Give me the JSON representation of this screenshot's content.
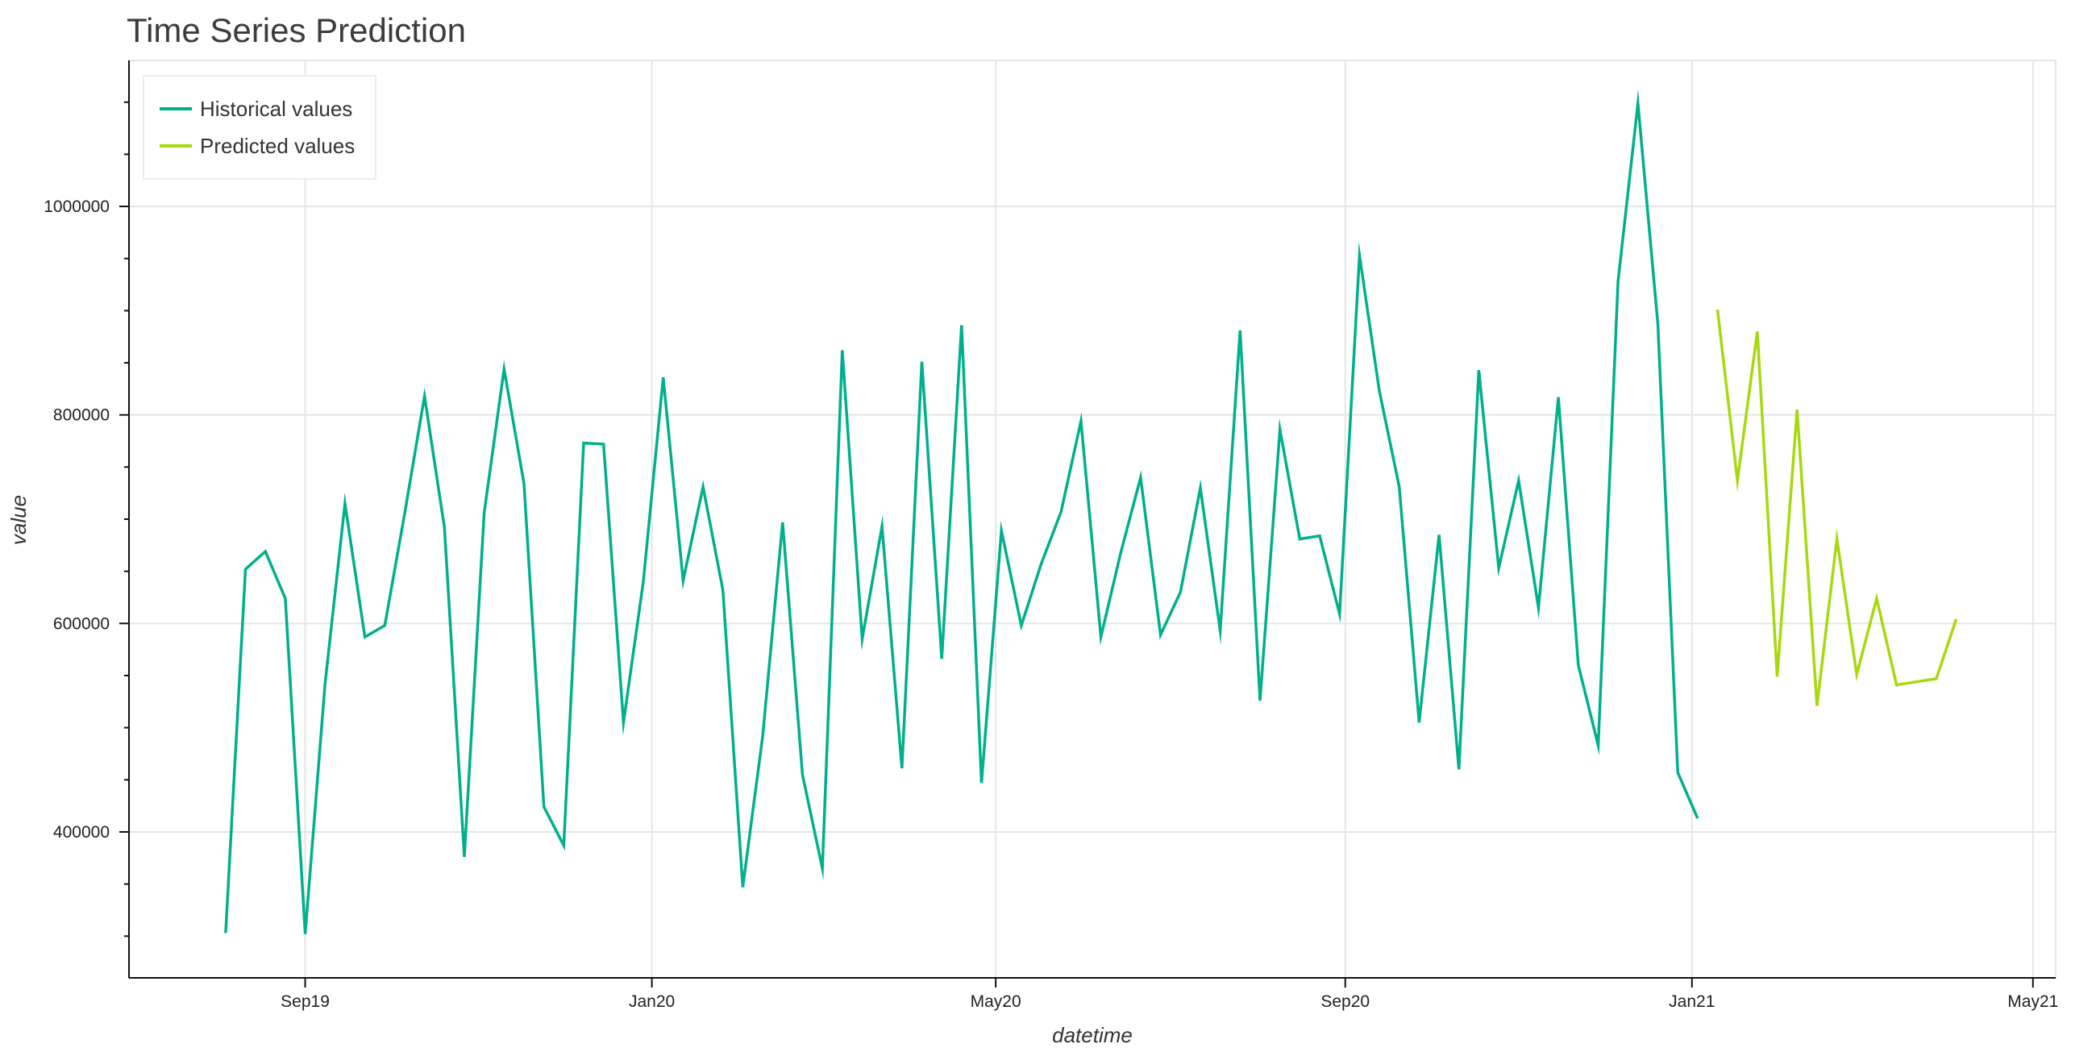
{
  "chart_data": {
    "type": "line",
    "title": "Time Series Prediction",
    "xlabel": "datetime",
    "ylabel": "value",
    "x_ticks": [
      {
        "date": "2019-09-01",
        "label": "Sep19"
      },
      {
        "date": "2020-01-01",
        "label": "Jan20"
      },
      {
        "date": "2020-05-01",
        "label": "May20"
      },
      {
        "date": "2020-09-01",
        "label": "Sep20"
      },
      {
        "date": "2021-01-01",
        "label": "Jan21"
      },
      {
        "date": "2021-05-01",
        "label": "May21"
      }
    ],
    "y_ticks": [
      {
        "value": 400000,
        "label": "400000"
      },
      {
        "value": 600000,
        "label": "600000"
      },
      {
        "value": 800000,
        "label": "800000"
      },
      {
        "value": 1000000,
        "label": "1000000"
      }
    ],
    "xlim": [
      "2019-07-01",
      "2021-05-09"
    ],
    "ylim": [
      260000,
      1140000
    ],
    "grid": true,
    "legend_position": "top-left",
    "series": [
      {
        "name": "Historical values",
        "color": "#00b08b",
        "x": [
          "2019-08-04",
          "2019-08-11",
          "2019-08-18",
          "2019-08-25",
          "2019-09-01",
          "2019-09-08",
          "2019-09-15",
          "2019-09-22",
          "2019-09-29",
          "2019-10-06",
          "2019-10-13",
          "2019-10-20",
          "2019-10-27",
          "2019-11-03",
          "2019-11-10",
          "2019-11-17",
          "2019-11-24",
          "2019-12-01",
          "2019-12-08",
          "2019-12-15",
          "2019-12-22",
          "2019-12-29",
          "2020-01-05",
          "2020-01-12",
          "2020-01-19",
          "2020-01-26",
          "2020-02-02",
          "2020-02-09",
          "2020-02-16",
          "2020-02-23",
          "2020-03-01",
          "2020-03-08",
          "2020-03-15",
          "2020-03-22",
          "2020-03-29",
          "2020-04-05",
          "2020-04-12",
          "2020-04-19",
          "2020-04-26",
          "2020-05-03",
          "2020-05-10",
          "2020-05-17",
          "2020-05-24",
          "2020-05-31",
          "2020-06-07",
          "2020-06-14",
          "2020-06-21",
          "2020-06-28",
          "2020-07-05",
          "2020-07-12",
          "2020-07-19",
          "2020-07-26",
          "2020-08-02",
          "2020-08-09",
          "2020-08-16",
          "2020-08-23",
          "2020-08-30",
          "2020-09-06",
          "2020-09-13",
          "2020-09-20",
          "2020-09-27",
          "2020-10-04",
          "2020-10-11",
          "2020-10-18",
          "2020-10-25",
          "2020-11-01",
          "2020-11-08",
          "2020-11-15",
          "2020-11-22",
          "2020-11-29",
          "2020-12-06",
          "2020-12-13",
          "2020-12-20",
          "2020-12-27",
          "2021-01-03"
        ],
        "y": [
          303000,
          652000,
          669000,
          624000,
          302000,
          542000,
          715000,
          587000,
          598000,
          705000,
          818000,
          692000,
          376000,
          706000,
          844000,
          734000,
          424000,
          387000,
          773000,
          772000,
          505000,
          640000,
          836000,
          641000,
          731000,
          632000,
          347000,
          492000,
          697000,
          455000,
          365000,
          862000,
          585000,
          693000,
          461000,
          851000,
          566000,
          886000,
          447000,
          689000,
          598000,
          657000,
          707000,
          794000,
          587000,
          668000,
          740000,
          589000,
          630000,
          730000,
          593000,
          881000,
          526000,
          786000,
          681000,
          684000,
          609000,
          953000,
          823000,
          731000,
          505000,
          685000,
          460000,
          843000,
          653000,
          737000,
          615000,
          817000,
          560000,
          483000,
          928000,
          1099000,
          887000,
          457000,
          413000
        ]
      },
      {
        "name": "Predicted values",
        "color": "#a8d80f",
        "x": [
          "2021-01-10",
          "2021-01-17",
          "2021-01-24",
          "2021-01-31",
          "2021-02-07",
          "2021-02-14",
          "2021-02-21",
          "2021-02-28",
          "2021-03-07",
          "2021-03-14",
          "2021-03-21",
          "2021-03-28",
          "2021-04-04"
        ],
        "y": [
          901000,
          737000,
          880000,
          549000,
          805000,
          521000,
          681000,
          551000,
          624000,
          541000,
          544000,
          547000,
          604000
        ]
      }
    ]
  }
}
